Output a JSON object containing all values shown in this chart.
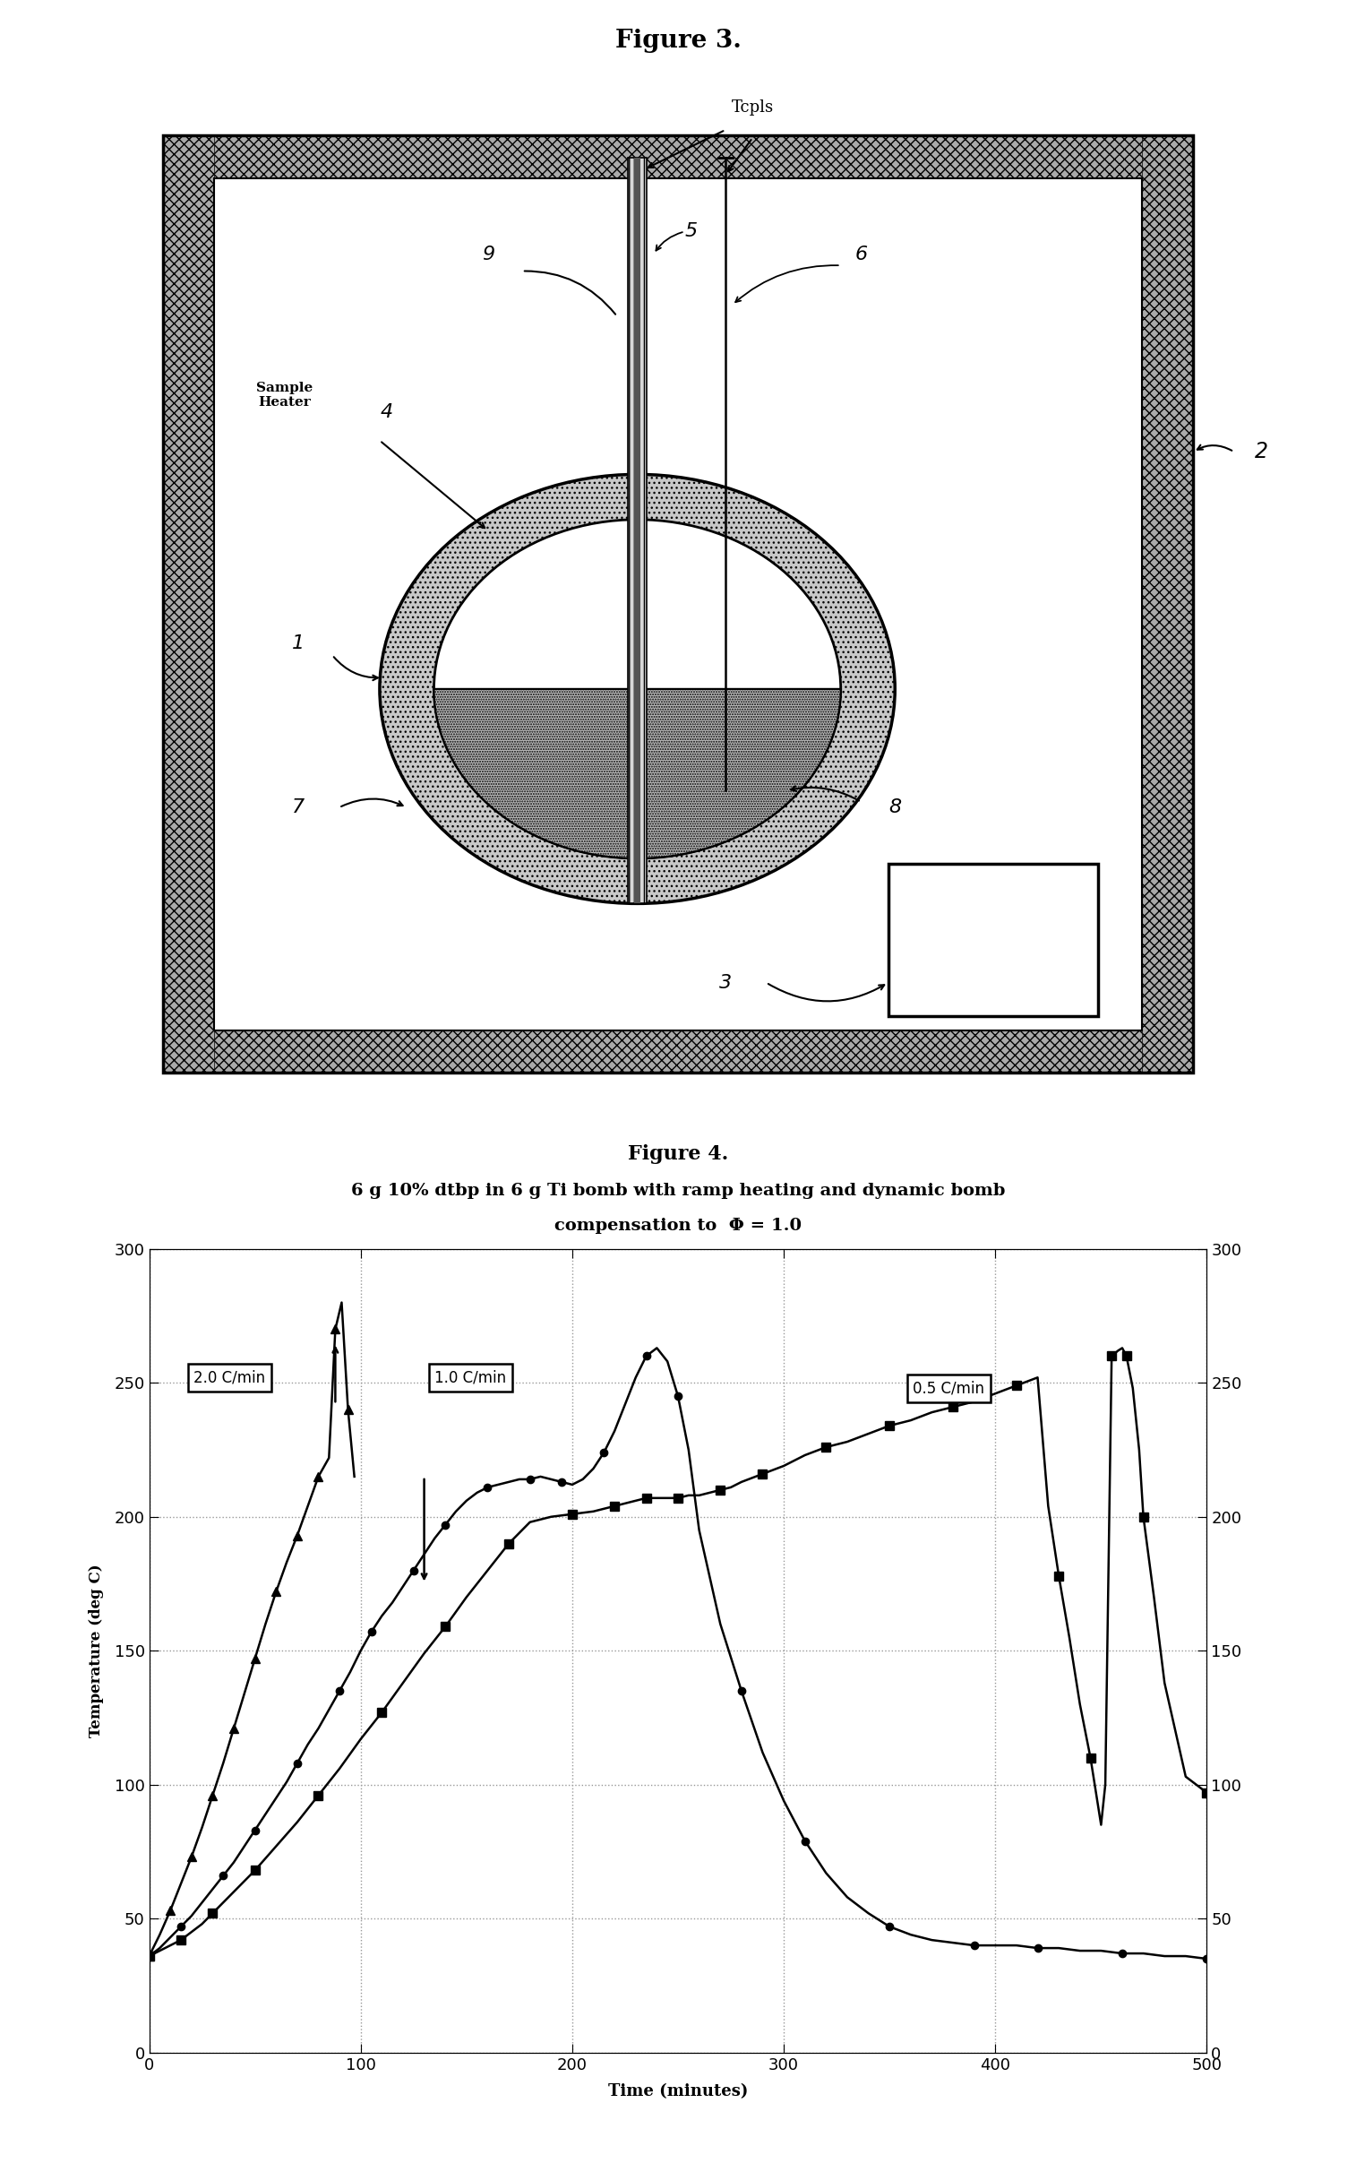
{
  "fig3_title": "Figure 3.",
  "fig4_title": "Figure 4.",
  "fig4_subtitle1": "6 g 10% dtbp in 6 g Ti bomb with ramp heating and dynamic bomb",
  "fig4_subtitle2": "compensation to  Φ = 1.0",
  "fig4_xlabel": "Time (minutes)",
  "fig4_ylabel": "Temperature (deg C)",
  "fig4_xlim": [
    0,
    500
  ],
  "fig4_ylim": [
    0,
    300
  ],
  "fig4_xticks": [
    0,
    100,
    200,
    300,
    400,
    500
  ],
  "fig4_yticks": [
    0,
    50,
    100,
    150,
    200,
    250,
    300
  ],
  "label_2C": "2.0 C/min",
  "label_1C": "1.0 C/min",
  "label_05C": "0.5 C/min",
  "background_color": "#ffffff",
  "s1_x": [
    0,
    5,
    10,
    15,
    20,
    25,
    30,
    35,
    40,
    45,
    50,
    55,
    60,
    65,
    70,
    75,
    80,
    85,
    88,
    91,
    94,
    97
  ],
  "s1_y": [
    36,
    44,
    53,
    63,
    73,
    84,
    96,
    108,
    121,
    134,
    147,
    160,
    172,
    183,
    193,
    204,
    215,
    222,
    270,
    280,
    240,
    215
  ],
  "s2_x": [
    0,
    5,
    10,
    15,
    20,
    25,
    30,
    35,
    40,
    45,
    50,
    55,
    60,
    65,
    70,
    75,
    80,
    85,
    90,
    95,
    100,
    105,
    110,
    115,
    120,
    125,
    130,
    135,
    140,
    145,
    150,
    155,
    160,
    165,
    170,
    175,
    180,
    185,
    190,
    195,
    200,
    205,
    210,
    215,
    220,
    225,
    230,
    235,
    240,
    245,
    250,
    255,
    260,
    270,
    280,
    290,
    300,
    310,
    320,
    330,
    340,
    350,
    360,
    370,
    380,
    390,
    400,
    410,
    420,
    430,
    440,
    450,
    460,
    470,
    480,
    490,
    500
  ],
  "s2_y": [
    36,
    39,
    43,
    47,
    51,
    56,
    61,
    66,
    71,
    77,
    83,
    89,
    95,
    101,
    108,
    115,
    121,
    128,
    135,
    142,
    150,
    157,
    163,
    168,
    174,
    180,
    186,
    192,
    197,
    202,
    206,
    209,
    211,
    212,
    213,
    214,
    214,
    215,
    214,
    213,
    212,
    214,
    218,
    224,
    232,
    242,
    252,
    260,
    263,
    258,
    245,
    225,
    195,
    160,
    135,
    112,
    94,
    79,
    67,
    58,
    52,
    47,
    44,
    42,
    41,
    40,
    40,
    40,
    39,
    39,
    38,
    38,
    37,
    37,
    36,
    36,
    35
  ],
  "s3_x": [
    0,
    5,
    10,
    15,
    20,
    25,
    30,
    35,
    40,
    50,
    60,
    70,
    80,
    90,
    100,
    110,
    120,
    130,
    140,
    150,
    160,
    170,
    180,
    190,
    200,
    210,
    215,
    220,
    225,
    230,
    235,
    240,
    245,
    250,
    255,
    260,
    265,
    270,
    275,
    280,
    290,
    300,
    310,
    320,
    330,
    340,
    350,
    360,
    370,
    380,
    390,
    400,
    410,
    420,
    425,
    430,
    435,
    440,
    445,
    450,
    452,
    455,
    458,
    460,
    462,
    465,
    468,
    470,
    475,
    480,
    490,
    500
  ],
  "s3_y": [
    36,
    38,
    40,
    42,
    45,
    48,
    52,
    56,
    60,
    68,
    77,
    86,
    96,
    106,
    117,
    127,
    138,
    149,
    159,
    170,
    180,
    190,
    198,
    200,
    201,
    202,
    203,
    204,
    205,
    206,
    207,
    207,
    207,
    207,
    208,
    208,
    209,
    210,
    211,
    213,
    216,
    219,
    223,
    226,
    228,
    231,
    234,
    236,
    239,
    241,
    243,
    246,
    249,
    252,
    204,
    178,
    155,
    130,
    110,
    85,
    100,
    260,
    262,
    263,
    260,
    248,
    225,
    200,
    170,
    138,
    103,
    97
  ]
}
